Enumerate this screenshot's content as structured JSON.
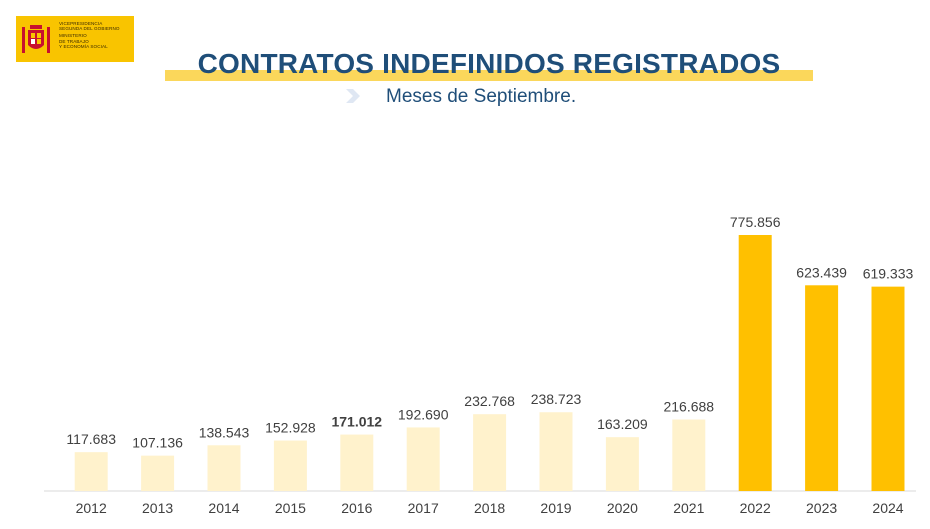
{
  "header": {
    "logo_lines": [
      "VICEPRESIDENCIA",
      "SEGUNDA DEL GOBIERNO",
      "MINISTERIO",
      "DE TRABAJO",
      "Y ECONOMÍA SOCIAL"
    ],
    "title": "CONTRATOS INDEFINIDOS REGISTRADOS",
    "subtitle": "Meses de Septiembre."
  },
  "colors": {
    "logo_bg": "#f9c400",
    "title_text": "#1f4e79",
    "title_bar": "#fbd75b",
    "arrow": "#dfe7f3",
    "bar_light": "#fff2cc",
    "bar_strong": "#ffc000",
    "axis": "#d9d9d9"
  },
  "chart_data": {
    "type": "bar",
    "title": "CONTRATOS INDEFINIDOS REGISTRADOS",
    "subtitle": "Meses de Septiembre.",
    "categories": [
      "2012",
      "2013",
      "2014",
      "2015",
      "2016",
      "2017",
      "2018",
      "2019",
      "2020",
      "2021",
      "2022",
      "2023",
      "2024"
    ],
    "values": [
      117683,
      107136,
      138543,
      152928,
      171012,
      192690,
      232768,
      238723,
      163209,
      216688,
      775856,
      623439,
      619333
    ],
    "data_labels": [
      "117.683",
      "107.136",
      "138.543",
      "152.928",
      "171.012",
      "192.690",
      "232.768",
      "238.723",
      "163.209",
      "216.688",
      "775.856",
      "623.439",
      "619.333"
    ],
    "bold_labels": [
      "2016"
    ],
    "highlighted_categories": [
      "2022",
      "2023",
      "2024"
    ],
    "ylim": [
      0,
      800000
    ],
    "grid": false,
    "legend": "none",
    "xlabel": "",
    "ylabel": ""
  }
}
